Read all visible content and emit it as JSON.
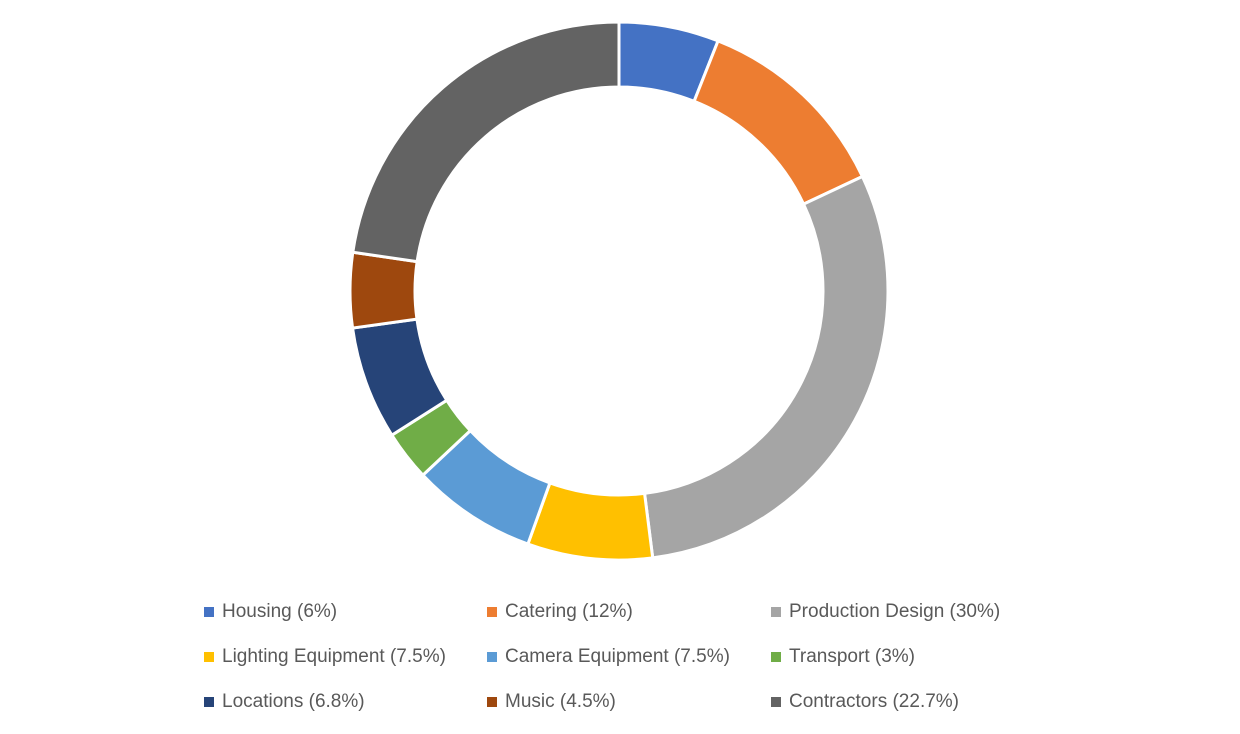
{
  "chart_data": {
    "type": "pie",
    "variant": "doughnut",
    "title": "",
    "legend_position": "bottom",
    "slices": [
      {
        "label": "Housing",
        "value": 6,
        "legend": "Housing (6%)",
        "color": "#4472C4"
      },
      {
        "label": "Catering",
        "value": 12,
        "legend": "Catering (12%)",
        "color": "#ED7D31"
      },
      {
        "label": "Production Design",
        "value": 30,
        "legend": "Production Design (30%)",
        "color": "#A5A5A5"
      },
      {
        "label": "Lighting Equipment",
        "value": 7.5,
        "legend": "Lighting Equipment (7.5%)",
        "color": "#FFC000"
      },
      {
        "label": "Camera Equipment",
        "value": 7.5,
        "legend": "Camera Equipment (7.5%)",
        "color": "#5B9BD5"
      },
      {
        "label": "Transport",
        "value": 3,
        "legend": "Transport (3%)",
        "color": "#70AD47"
      },
      {
        "label": "Locations",
        "value": 6.8,
        "legend": "Locations (6.8%)",
        "color": "#264478"
      },
      {
        "label": "Music",
        "value": 4.5,
        "legend": "Music (4.5%)",
        "color": "#9E480E"
      },
      {
        "label": "Contractors",
        "value": 22.7,
        "legend": "Contractors (22.7%)",
        "color": "#636363"
      }
    ]
  }
}
